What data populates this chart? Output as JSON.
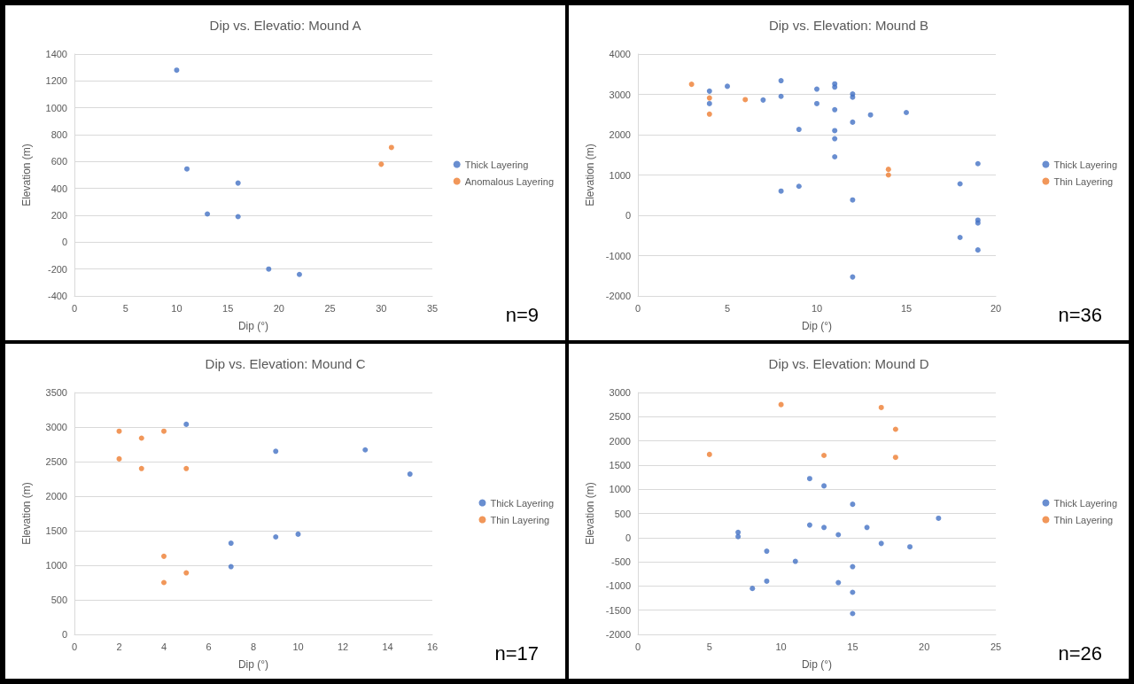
{
  "chart_data": [
    {
      "type": "scatter",
      "title": "Dip vs. Elevatio: Mound A",
      "xlabel": "Dip (°)",
      "ylabel": "Elevation (m)",
      "annotations": [
        "n=9"
      ],
      "xlim": [
        0,
        35
      ],
      "xticks": [
        0,
        5,
        10,
        15,
        20,
        25,
        30,
        35
      ],
      "ylim": [
        -400,
        1400
      ],
      "yticks": [
        -400,
        -200,
        0,
        200,
        400,
        600,
        800,
        1000,
        1200,
        1400
      ],
      "grid": "y",
      "legend": "right",
      "marker": "circle",
      "series": [
        {
          "name": "Thick Layering",
          "color": "#4472c4",
          "x": [
            10,
            11,
            13,
            16,
            16,
            19,
            22
          ],
          "values": [
            1280,
            545,
            210,
            440,
            190,
            -200,
            -240
          ]
        },
        {
          "name": "Anomalous Layering",
          "color": "#ed7d31",
          "x": [
            30,
            31
          ],
          "values": [
            580,
            705
          ]
        }
      ]
    },
    {
      "type": "scatter",
      "title": "Dip vs. Elevation: Mound B",
      "xlabel": "Dip (°)",
      "ylabel": "Elevation (m)",
      "annotations": [
        "n=36"
      ],
      "xlim": [
        0,
        20
      ],
      "xticks": [
        0,
        5,
        10,
        15,
        20
      ],
      "ylim": [
        -2000,
        4000
      ],
      "yticks": [
        -2000,
        -1000,
        0,
        1000,
        2000,
        3000,
        4000
      ],
      "grid": "y",
      "legend": "right",
      "marker": "circle",
      "series": [
        {
          "name": "Thick Layering",
          "color": "#4472c4",
          "x": [
            4,
            4,
            5,
            7,
            8,
            8,
            9,
            9,
            8,
            10,
            10,
            11,
            11,
            11,
            11,
            11,
            11,
            12,
            12,
            12,
            12,
            12,
            13,
            15,
            18,
            18,
            19,
            19,
            19,
            19
          ],
          "values": [
            3080,
            2770,
            3200,
            2860,
            3340,
            2950,
            2130,
            720,
            600,
            3130,
            2770,
            3260,
            3180,
            2620,
            2100,
            1900,
            1450,
            3010,
            2930,
            2310,
            380,
            -1530,
            2490,
            2550,
            780,
            -550,
            1280,
            -120,
            -190,
            -860
          ]
        },
        {
          "name": "Thin Layering",
          "color": "#ed7d31",
          "x": [
            3,
            4,
            4,
            6,
            14,
            14
          ],
          "values": [
            3250,
            2910,
            2510,
            2870,
            1140,
            1000
          ]
        }
      ]
    },
    {
      "type": "scatter",
      "title": "Dip vs. Elevation: Mound C",
      "xlabel": "Dip (°)",
      "ylabel": "Elevation (m)",
      "annotations": [
        "n=17"
      ],
      "xlim": [
        0,
        16
      ],
      "xticks": [
        0,
        2,
        4,
        6,
        8,
        10,
        12,
        14,
        16
      ],
      "ylim": [
        0,
        3500
      ],
      "yticks": [
        0,
        500,
        1000,
        1500,
        2000,
        2500,
        3000,
        3500
      ],
      "grid": "y",
      "legend": "right",
      "marker": "circle",
      "series": [
        {
          "name": "Thick Layering",
          "color": "#4472c4",
          "x": [
            5,
            9,
            13,
            15,
            7,
            9,
            10,
            7
          ],
          "values": [
            3040,
            2650,
            2670,
            2320,
            1320,
            1410,
            1450,
            980
          ]
        },
        {
          "name": "Thin Layering",
          "color": "#ed7d31",
          "x": [
            2,
            3,
            4,
            2,
            3,
            5,
            4,
            5,
            4
          ],
          "values": [
            2940,
            2840,
            2940,
            2540,
            2400,
            2400,
            1130,
            890,
            750
          ]
        }
      ]
    },
    {
      "type": "scatter",
      "title": "Dip vs. Elevation: Mound D",
      "xlabel": "Dip (°)",
      "ylabel": "Elevation (m)",
      "annotations": [
        "n=26"
      ],
      "xlim": [
        0,
        25
      ],
      "xticks": [
        0,
        5,
        10,
        15,
        20,
        25
      ],
      "ylim": [
        -2000,
        3000
      ],
      "yticks": [
        -2000,
        -1500,
        -1000,
        -500,
        0,
        500,
        1000,
        1500,
        2000,
        2500,
        3000
      ],
      "grid": "y",
      "legend": "right",
      "marker": "circle",
      "series": [
        {
          "name": "Thick Layering",
          "color": "#4472c4",
          "x": [
            12,
            13,
            15,
            21,
            12,
            13,
            16,
            14,
            7,
            7,
            17,
            19,
            9,
            11,
            15,
            9,
            14,
            8,
            15,
            15
          ],
          "values": [
            1220,
            1070,
            690,
            400,
            260,
            210,
            210,
            60,
            110,
            20,
            -120,
            -190,
            -280,
            -490,
            -600,
            -900,
            -930,
            -1050,
            -1130,
            -1570
          ]
        },
        {
          "name": "Thin Layering",
          "color": "#ed7d31",
          "x": [
            5,
            10,
            13,
            17,
            18,
            18
          ],
          "values": [
            1720,
            2750,
            1700,
            2690,
            2240,
            1660
          ]
        }
      ]
    }
  ]
}
